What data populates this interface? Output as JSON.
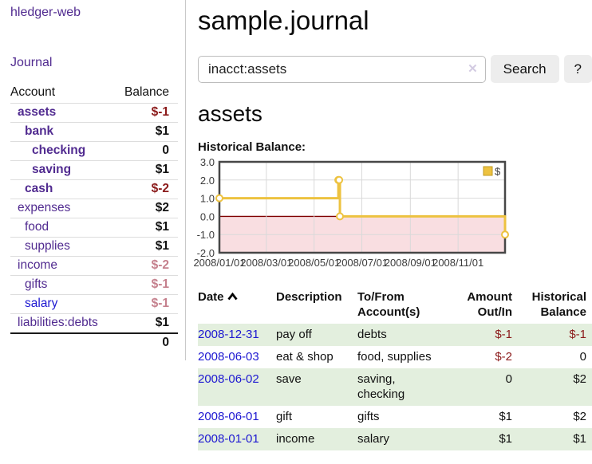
{
  "palette": {
    "link_purple": "#512b90",
    "link_blue": "#1d18d1",
    "negative": "#8b1a1a",
    "negative_dim": "#c5808d",
    "row_stripe_green": "#e3efde"
  },
  "sidebar": {
    "app_title": "hledger-web",
    "journal_link": "Journal",
    "accounts_table": {
      "headers": {
        "account": "Account",
        "balance": "Balance"
      },
      "rows": [
        {
          "name": "assets",
          "indent": 1,
          "bold": true,
          "link_color": "purple",
          "balance": "$-1",
          "balance_class": "neg"
        },
        {
          "name": "bank",
          "indent": 2,
          "bold": true,
          "link_color": "purple",
          "balance": "$1",
          "balance_class": "pos"
        },
        {
          "name": "checking",
          "indent": 3,
          "bold": true,
          "link_color": "purple",
          "balance": "0",
          "balance_class": "pos"
        },
        {
          "name": "saving",
          "indent": 3,
          "bold": true,
          "link_color": "purple",
          "balance": "$1",
          "balance_class": "pos"
        },
        {
          "name": "cash",
          "indent": 2,
          "bold": true,
          "link_color": "purple",
          "balance": "$-2",
          "balance_class": "neg"
        },
        {
          "name": "expenses",
          "indent": 1,
          "bold": false,
          "link_color": "purple",
          "balance": "$2",
          "balance_class": "pos"
        },
        {
          "name": "food",
          "indent": 2,
          "bold": false,
          "link_color": "purple",
          "balance": "$1",
          "balance_class": "pos"
        },
        {
          "name": "supplies",
          "indent": 2,
          "bold": false,
          "link_color": "purple",
          "balance": "$1",
          "balance_class": "pos"
        },
        {
          "name": "income",
          "indent": 1,
          "bold": false,
          "link_color": "purple",
          "balance": "$-2",
          "balance_class": "rose"
        },
        {
          "name": "gifts",
          "indent": 2,
          "bold": false,
          "link_color": "purple",
          "balance": "$-1",
          "balance_class": "rose"
        },
        {
          "name": "salary",
          "indent": 2,
          "bold": false,
          "link_color": "blue",
          "balance": "$-1",
          "balance_class": "rose"
        },
        {
          "name": "liabilities:debts",
          "indent": 1,
          "bold": false,
          "link_color": "purple",
          "balance": "$1",
          "balance_class": "pos"
        }
      ],
      "total": "0"
    }
  },
  "header": {
    "title": "sample.journal"
  },
  "search": {
    "value": "inacct:assets",
    "clear_icon": "✕",
    "button_label": "Search",
    "help_label": "?"
  },
  "account_page": {
    "heading": "assets",
    "chart_label": "Historical Balance:"
  },
  "chart_data": {
    "type": "line",
    "step": true,
    "title": "Historical Balance",
    "x_range": [
      "2008-01-01",
      "2008-12-31"
    ],
    "ylim": [
      -2,
      3
    ],
    "yticks": [
      3,
      2,
      1,
      0,
      -1,
      -2
    ],
    "xticks": [
      {
        "date": "2008-01-01",
        "label": "2008/01/01"
      },
      {
        "date": "2008-03-01",
        "label": "2008/03/01"
      },
      {
        "date": "2008-05-01",
        "label": "2008/05/01"
      },
      {
        "date": "2008-07-01",
        "label": "2008/07/01"
      },
      {
        "date": "2008-09-01",
        "label": "2008/09/01"
      },
      {
        "date": "2008-11-01",
        "label": "2008/11/01"
      }
    ],
    "series": [
      {
        "name": "$",
        "color": "#edc240",
        "legend_swatch_border": "#c19b22",
        "points": [
          [
            "2008-01-01",
            1
          ],
          [
            "2008-06-01",
            2
          ],
          [
            "2008-06-02",
            2
          ],
          [
            "2008-06-03",
            0
          ],
          [
            "2008-12-31",
            -1
          ]
        ]
      }
    ],
    "legend_position": "top-right",
    "grid": true,
    "colors": {
      "negative_region": "#f9dee1",
      "zero_line": "#7f0000",
      "grid": "#d9d9d9",
      "border": "#474747"
    }
  },
  "register": {
    "headers": {
      "date": "Date",
      "description": "Description",
      "accounts": "To/From Account(s)",
      "amount": "Amount Out/In",
      "balance": "Historical Balance"
    },
    "rows": [
      {
        "date": "2008-12-31",
        "description": "pay off",
        "accounts": "debts",
        "amount": "$-1",
        "amount_negative": true,
        "balance": "$-1",
        "balance_negative": true
      },
      {
        "date": "2008-06-03",
        "description": "eat & shop",
        "accounts": "food, supplies",
        "amount": "$-2",
        "amount_negative": true,
        "balance": "0",
        "balance_negative": false
      },
      {
        "date": "2008-06-02",
        "description": "save",
        "accounts": "saving, checking",
        "amount": "0",
        "amount_negative": false,
        "balance": "$2",
        "balance_negative": false
      },
      {
        "date": "2008-06-01",
        "description": "gift",
        "accounts": "gifts",
        "amount": "$1",
        "amount_negative": false,
        "balance": "$2",
        "balance_negative": false
      },
      {
        "date": "2008-01-01",
        "description": "income",
        "accounts": "salary",
        "amount": "$1",
        "amount_negative": false,
        "balance": "$1",
        "balance_negative": false
      }
    ]
  }
}
